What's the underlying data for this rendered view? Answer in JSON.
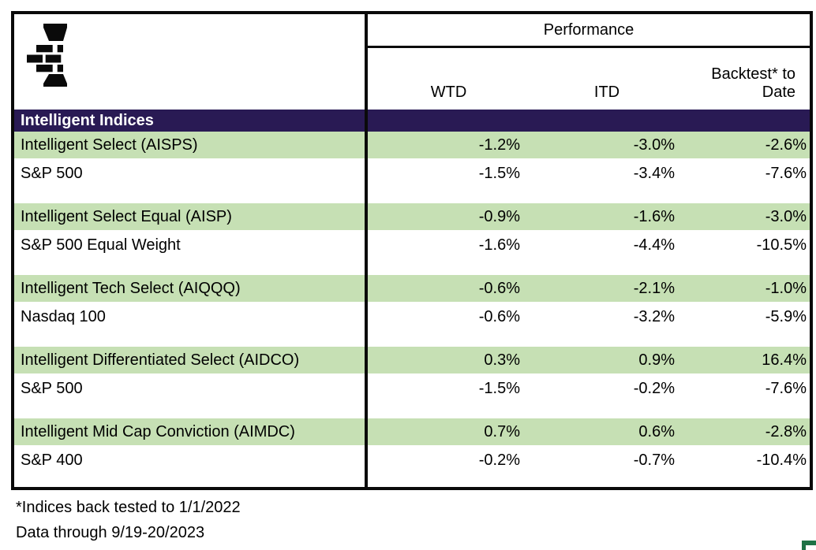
{
  "chart_data": {
    "type": "table",
    "title": "Performance",
    "columns": [
      "",
      "WTD",
      "ITD",
      "Backtest* to Date"
    ],
    "section": "Intelligent Indices",
    "rows": [
      [
        "Intelligent Select (AISPS)",
        "-1.2%",
        "-3.0%",
        "-2.6%"
      ],
      [
        "S&P 500",
        "-1.5%",
        "-3.4%",
        "-7.6%"
      ],
      [
        "Intelligent Select Equal (AISP)",
        "-0.9%",
        "-1.6%",
        "-3.0%"
      ],
      [
        "S&P 500 Equal Weight",
        "-1.6%",
        "-4.4%",
        "-10.5%"
      ],
      [
        "Intelligent Tech Select (AIQQQ)",
        "-0.6%",
        "-2.1%",
        "-1.0%"
      ],
      [
        "Nasdaq 100",
        "-0.6%",
        "-3.2%",
        "-5.9%"
      ],
      [
        "Intelligent Differentiated Select (AIDCO)",
        "0.3%",
        "0.9%",
        "16.4%"
      ],
      [
        "S&P 500",
        "-1.5%",
        "-0.2%",
        "-7.6%"
      ],
      [
        "Intelligent Mid Cap Conviction (AIMDC)",
        "0.7%",
        "0.6%",
        "-2.8%"
      ],
      [
        "S&P 400",
        "-0.2%",
        "-0.7%",
        "-10.4%"
      ]
    ],
    "row_striping": "pairs: first row of each pair highlighted green",
    "footnotes": [
      "*Indices back tested to 1/1/2022",
      "Data through 9/19-20/2023"
    ],
    "legend_position": "none",
    "grid": "off"
  },
  "icons": {
    "logo": "brick-column-logo",
    "corner": "green-corner-mark"
  },
  "colors": {
    "band_purple": "#291a54",
    "row_green": "#c6e0b4",
    "border_black": "#0a0a0a",
    "corner_green": "#1e7145",
    "band_text": "#ffffff"
  }
}
